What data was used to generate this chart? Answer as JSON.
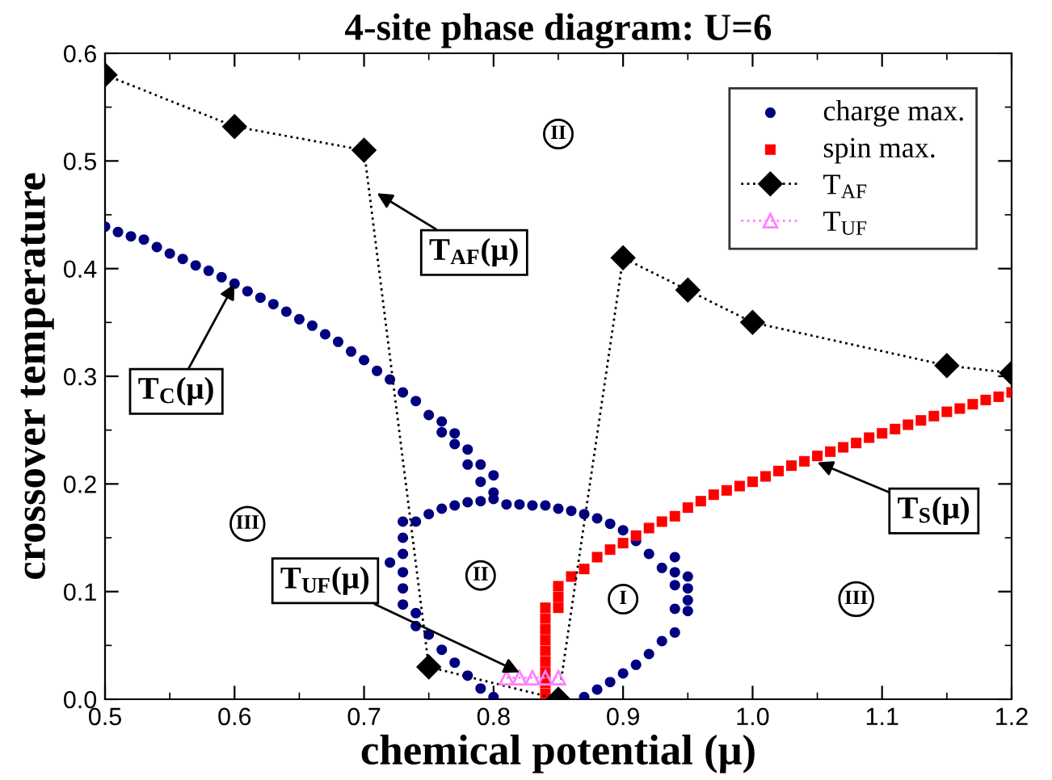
{
  "chart_data": {
    "type": "scatter",
    "title": "4-site phase diagram: U=6",
    "xlabel": "chemical potential (μ)",
    "ylabel": "crossover temperature",
    "xlim": [
      0.5,
      1.2
    ],
    "ylim": [
      0.0,
      0.6
    ],
    "xticks": [
      0.5,
      0.6,
      0.7,
      0.8,
      0.9,
      {
        "value": 1.0,
        "label": "1.0"
      },
      1.1,
      1.2
    ],
    "yticks": [
      {
        "value": 0.0,
        "label": "0.0"
      },
      0.1,
      0.2,
      0.3,
      0.4,
      0.5,
      0.6
    ],
    "grid": false,
    "legend": "top right",
    "series": [
      {
        "name": "charge max.",
        "marker": "circle",
        "color": "#000080",
        "x": [
          0.5,
          0.51,
          0.52,
          0.53,
          0.54,
          0.55,
          0.56,
          0.57,
          0.58,
          0.59,
          0.6,
          0.61,
          0.62,
          0.63,
          0.64,
          0.65,
          0.66,
          0.67,
          0.68,
          0.69,
          0.7,
          0.71,
          0.72,
          0.73,
          0.74,
          0.75,
          0.76,
          0.76,
          0.77,
          0.77,
          0.78,
          0.78,
          0.79,
          0.79,
          0.8,
          0.8,
          0.72,
          0.73,
          0.73,
          0.73,
          0.73,
          0.73,
          0.73,
          0.74,
          0.75,
          0.76,
          0.77,
          0.78,
          0.79,
          0.8,
          0.74,
          0.74,
          0.75,
          0.76,
          0.77,
          0.78,
          0.79,
          0.8,
          0.81,
          0.82,
          0.83,
          0.84,
          0.85,
          0.86,
          0.87,
          0.88,
          0.89,
          0.9,
          0.91,
          0.92,
          0.93,
          0.94,
          0.94,
          0.94,
          0.95,
          0.95,
          0.95,
          0.95,
          0.94,
          0.94,
          0.93,
          0.92,
          0.91,
          0.9,
          0.89,
          0.88,
          0.87
        ],
        "values": [
          0.439,
          0.434,
          0.43,
          0.427,
          0.42,
          0.414,
          0.409,
          0.403,
          0.398,
          0.392,
          0.386,
          0.379,
          0.373,
          0.367,
          0.36,
          0.353,
          0.347,
          0.339,
          0.332,
          0.323,
          0.315,
          0.305,
          0.297,
          0.285,
          0.277,
          0.264,
          0.258,
          0.248,
          0.247,
          0.237,
          0.232,
          0.218,
          0.218,
          0.202,
          0.208,
          0.192,
          0.127,
          0.165,
          0.15,
          0.135,
          0.118,
          0.103,
          0.088,
          0.165,
          0.172,
          0.177,
          0.18,
          0.183,
          0.184,
          0.186,
          0.08,
          0.068,
          0.06,
          0.046,
          0.034,
          0.022,
          0.01,
          0.002,
          0.181,
          0.181,
          0.18,
          0.18,
          0.177,
          0.175,
          0.172,
          0.168,
          0.163,
          0.157,
          0.147,
          0.135,
          0.122,
          0.132,
          0.118,
          0.106,
          0.114,
          0.103,
          0.092,
          0.082,
          0.084,
          0.062,
          0.054,
          0.042,
          0.032,
          0.024,
          0.016,
          0.009,
          0.002
        ]
      },
      {
        "name": "spin max.",
        "marker": "square",
        "color": "#ff0000",
        "x": [
          0.84,
          0.84,
          0.84,
          0.84,
          0.84,
          0.84,
          0.84,
          0.84,
          0.84,
          0.85,
          0.85,
          0.85,
          0.86,
          0.87,
          0.88,
          0.89,
          0.9,
          0.91,
          0.92,
          0.93,
          0.94,
          0.95,
          0.96,
          0.97,
          0.98,
          0.99,
          1.0,
          1.01,
          1.02,
          1.03,
          1.04,
          1.05,
          1.06,
          1.07,
          1.08,
          1.09,
          1.1,
          1.11,
          1.12,
          1.13,
          1.14,
          1.15,
          1.16,
          1.17,
          1.18,
          1.19,
          1.2
        ],
        "values": [
          0.005,
          0.015,
          0.025,
          0.035,
          0.045,
          0.055,
          0.065,
          0.075,
          0.085,
          0.085,
          0.095,
          0.105,
          0.114,
          0.121,
          0.132,
          0.139,
          0.145,
          0.152,
          0.159,
          0.165,
          0.17,
          0.178,
          0.184,
          0.19,
          0.194,
          0.198,
          0.202,
          0.207,
          0.212,
          0.217,
          0.221,
          0.226,
          0.23,
          0.234,
          0.238,
          0.243,
          0.247,
          0.251,
          0.255,
          0.259,
          0.263,
          0.267,
          0.27,
          0.274,
          0.278,
          0.281,
          0.285
        ]
      },
      {
        "name": "T$_{AF}$",
        "type": "line",
        "marker": "diamond",
        "line_style": "dotted",
        "color": "#000000",
        "x": [
          0.5,
          0.6,
          0.7,
          0.75,
          0.85,
          0.9,
          0.95,
          1.0,
          1.15,
          1.2
        ],
        "values": [
          0.58,
          0.532,
          0.51,
          0.03,
          0.0,
          0.41,
          0.38,
          0.35,
          0.31,
          0.303
        ]
      },
      {
        "name": "T$_{UF}$",
        "type": "line",
        "marker": "triangle",
        "line_style": "dotted",
        "color": "#ff80ff",
        "x": [
          0.81,
          0.82,
          0.83,
          0.84,
          0.85
        ],
        "values": [
          0.02,
          0.02,
          0.02,
          0.02,
          0.02
        ]
      }
    ],
    "annotations": [
      {
        "text": "T$_{AF}$(μ)",
        "x": 0.71,
        "y": 0.47
      },
      {
        "text": "T$_{C}$(μ)",
        "x": 0.6,
        "y": 0.386
      },
      {
        "text": "T$_{UF}$(μ)",
        "x": 0.82,
        "y": 0.025
      },
      {
        "text": "T$_{S}$(μ)",
        "x": 1.05,
        "y": 0.22
      },
      {
        "text": "II",
        "x": 0.85,
        "y": 0.525
      },
      {
        "text": "II",
        "x": 0.79,
        "y": 0.115
      },
      {
        "text": "I",
        "x": 0.9,
        "y": 0.093
      },
      {
        "text": "III",
        "x": 0.61,
        "y": 0.163
      },
      {
        "text": "III",
        "x": 1.08,
        "y": 0.093
      }
    ]
  }
}
